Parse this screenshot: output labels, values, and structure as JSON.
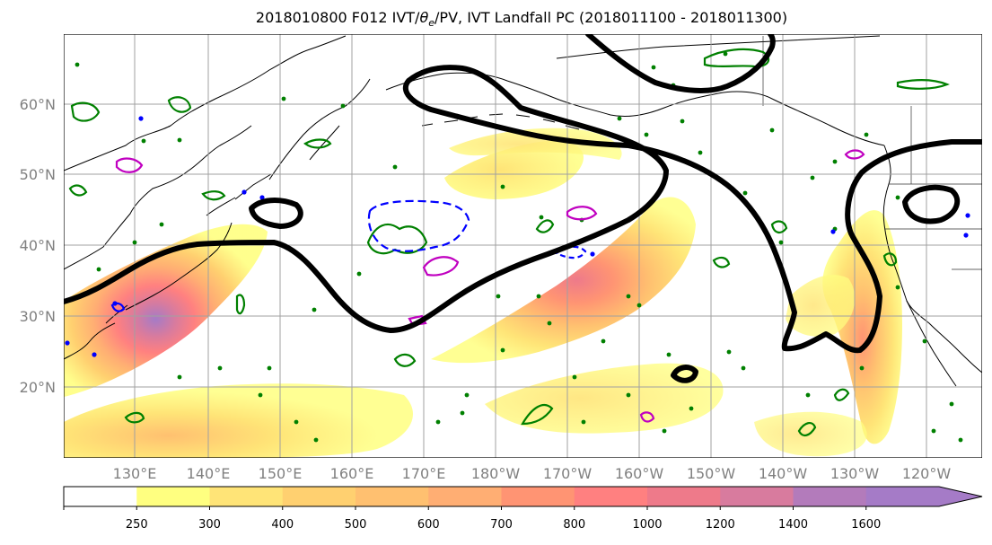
{
  "title": {
    "prefix": "2018010800 F012 IVT/",
    "theta": "θ",
    "theta_sub": "e",
    "suffix": "/PV, IVT Landfall PC (2018011100 - 2018011300)"
  },
  "map": {
    "lat_labels": [
      "20°N",
      "30°N",
      "40°N",
      "50°N",
      "60°N"
    ],
    "lon_labels": [
      "130°E",
      "140°E",
      "150°E",
      "160°E",
      "170°E",
      "180°W",
      "170°W",
      "160°W",
      "150°W",
      "140°W",
      "130°W",
      "120°W"
    ],
    "label_color": "#808080",
    "gridline_color": "#a0a0a0"
  },
  "colorbar": {
    "levels": [
      "250",
      "300",
      "400",
      "500",
      "600",
      "700",
      "800",
      "1000",
      "1200",
      "1400",
      "1600"
    ],
    "colors": [
      "#ffffff",
      "#ffff80",
      "#ffe477",
      "#ffd070",
      "#ffc070",
      "#ffae73",
      "#ff9473",
      "#ff8080",
      "#ee7a8a",
      "#d87b9e",
      "#b37bbb",
      "#a57bc7"
    ],
    "extend": "max"
  },
  "contour_colors": {
    "landfall_pc": "#000000",
    "pv_green": "#008000",
    "theta_magenta": "#c000c0",
    "theta_blue": "#0000ff"
  }
}
